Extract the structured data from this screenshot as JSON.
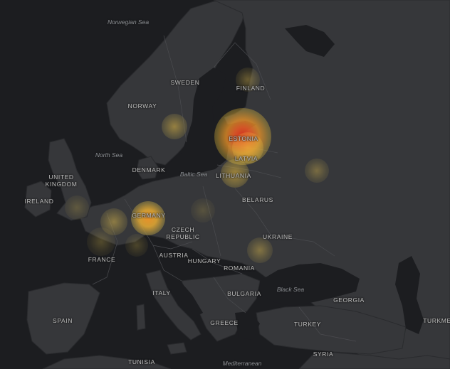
{
  "map": {
    "type": "heatmap",
    "seas": [
      {
        "id": "norwegian-sea",
        "label": "Norwegian Sea"
      },
      {
        "id": "north-sea",
        "label": "North Sea"
      },
      {
        "id": "baltic-sea",
        "label": "Baltic Sea"
      },
      {
        "id": "black-sea",
        "label": "Black Sea"
      },
      {
        "id": "mediterranean",
        "label": "Mediterranean"
      }
    ],
    "countries": [
      {
        "id": "sweden",
        "label": "SWEDEN"
      },
      {
        "id": "finland",
        "label": "FINLAND"
      },
      {
        "id": "norway",
        "label": "NORWAY"
      },
      {
        "id": "estonia",
        "label": "ESTONIA"
      },
      {
        "id": "latvia",
        "label": "LATVIA"
      },
      {
        "id": "denmark",
        "label": "DENMARK"
      },
      {
        "id": "lithuania",
        "label": "LITHUANIA"
      },
      {
        "id": "united-kingdom",
        "label": "UNITED\nKINGDOM"
      },
      {
        "id": "ireland",
        "label": "IRELAND"
      },
      {
        "id": "belarus",
        "label": "BELARUS"
      },
      {
        "id": "germany",
        "label": "GERMANY"
      },
      {
        "id": "czech-republic",
        "label": "CZECH\nREPUBLIC"
      },
      {
        "id": "ukraine",
        "label": "UKRAINE"
      },
      {
        "id": "austria",
        "label": "AUSTRIA"
      },
      {
        "id": "france",
        "label": "FRANCE"
      },
      {
        "id": "hungary",
        "label": "HUNGARY"
      },
      {
        "id": "romania",
        "label": "ROMANIA"
      },
      {
        "id": "italy",
        "label": "ITALY"
      },
      {
        "id": "bulgaria",
        "label": "BULGARIA"
      },
      {
        "id": "georgia",
        "label": "GEORGIA"
      },
      {
        "id": "spain",
        "label": "SPAIN"
      },
      {
        "id": "greece",
        "label": "GREECE"
      },
      {
        "id": "turkey",
        "label": "TURKEY"
      },
      {
        "id": "turkmen",
        "label": "TURKME"
      },
      {
        "id": "syria",
        "label": "SYRIA"
      },
      {
        "id": "tunisia",
        "label": "TUNISIA"
      }
    ],
    "heat_points": [
      {
        "id": "estonia-hotspot",
        "intensity": 1.0
      },
      {
        "id": "germany-hotspot",
        "intensity": 0.75
      },
      {
        "id": "latvia-hotspot",
        "intensity": 0.45
      },
      {
        "id": "lithuania-hotspot",
        "intensity": 0.4
      },
      {
        "id": "sweden-hotspot",
        "intensity": 0.3
      },
      {
        "id": "finland-hotspot",
        "intensity": 0.2
      },
      {
        "id": "russia-hotspot",
        "intensity": 0.2
      },
      {
        "id": "romania-hotspot",
        "intensity": 0.25
      },
      {
        "id": "benelux-hotspot",
        "intensity": 0.3
      },
      {
        "id": "france-hotspot",
        "intensity": 0.15
      },
      {
        "id": "uk-hotspot",
        "intensity": 0.12
      },
      {
        "id": "alps-hotspot",
        "intensity": 0.12
      },
      {
        "id": "poland-hotspot",
        "intensity": 0.1
      }
    ]
  }
}
